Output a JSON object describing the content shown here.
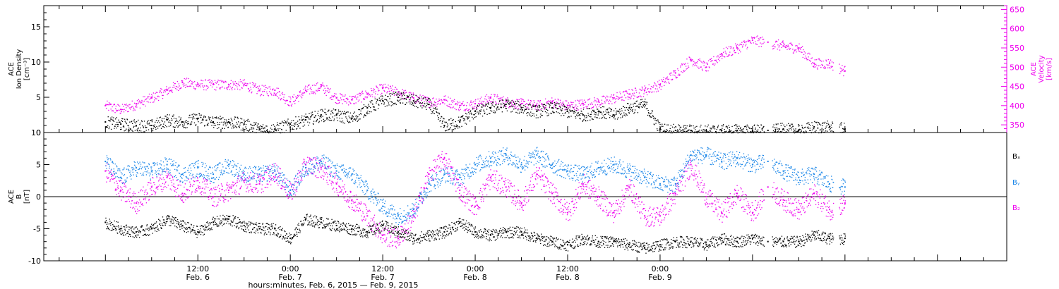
{
  "colors": {
    "black": "#000000",
    "magenta": "#ee00ee",
    "blue": "#1a86e8"
  },
  "chart_data": [
    {
      "type": "scatter",
      "panel": "top",
      "ylabel_left": [
        "ACE",
        "Ion Density",
        "[cm⁻³]"
      ],
      "ylabel_right": [
        "ACE",
        "Velocity",
        "[km/s]"
      ],
      "left_axis": {
        "ylim": [
          0,
          18
        ],
        "ticks": [
          0,
          5,
          10,
          15
        ]
      },
      "right_axis": {
        "ylim": [
          330,
          660
        ],
        "ticks": [
          350,
          400,
          450,
          500,
          550,
          600,
          650
        ]
      },
      "series": [
        {
          "axis": "left",
          "color": "black",
          "points": [
            [
              0,
              1.5
            ],
            [
              2,
              1.2
            ],
            [
              4,
              1.0
            ],
            [
              6,
              1.0
            ],
            [
              8,
              1.8
            ],
            [
              10,
              1.5
            ],
            [
              12,
              2.0
            ],
            [
              14,
              1.5
            ],
            [
              16,
              1.5
            ],
            [
              18,
              1.2
            ],
            [
              20,
              0.5
            ],
            [
              22,
              0.5
            ],
            [
              24,
              1.2
            ],
            [
              26,
              1.8
            ],
            [
              28,
              2.5
            ],
            [
              30,
              2.5
            ],
            [
              32,
              2.0
            ],
            [
              34,
              3.5
            ],
            [
              36,
              4.5
            ],
            [
              38,
              5.0
            ],
            [
              40,
              4.5
            ],
            [
              42,
              4.0
            ],
            [
              44,
              1.0
            ],
            [
              46,
              1.5
            ],
            [
              48,
              3.0
            ],
            [
              50,
              3.5
            ],
            [
              52,
              4.0
            ],
            [
              54,
              3.5
            ],
            [
              56,
              3.0
            ],
            [
              58,
              3.5
            ],
            [
              60,
              3.0
            ],
            [
              62,
              2.5
            ],
            [
              64,
              3.0
            ],
            [
              66,
              2.5
            ],
            [
              68,
              3.5
            ],
            [
              70,
              4.0
            ],
            [
              72,
              0.5
            ],
            [
              74,
              0.3
            ],
            [
              76,
              0.3
            ],
            [
              78,
              0.3
            ],
            [
              80,
              0.3
            ],
            [
              82,
              0.3
            ],
            [
              84,
              0.3
            ],
            [
              86,
              0.3
            ],
            [
              88,
              0.5
            ],
            [
              90,
              0.3
            ],
            [
              92,
              0.8
            ],
            [
              94,
              0.8
            ],
            [
              96,
              0.5
            ]
          ]
        },
        {
          "axis": "right",
          "color": "magenta",
          "points": [
            [
              0,
              400
            ],
            [
              2,
              390
            ],
            [
              4,
              405
            ],
            [
              6,
              420
            ],
            [
              8,
              440
            ],
            [
              10,
              460
            ],
            [
              12,
              455
            ],
            [
              14,
              455
            ],
            [
              16,
              455
            ],
            [
              18,
              455
            ],
            [
              20,
              440
            ],
            [
              22,
              440
            ],
            [
              24,
              410
            ],
            [
              26,
              440
            ],
            [
              28,
              450
            ],
            [
              30,
              420
            ],
            [
              32,
              415
            ],
            [
              34,
              430
            ],
            [
              36,
              445
            ],
            [
              38,
              435
            ],
            [
              40,
              420
            ],
            [
              42,
              410
            ],
            [
              44,
              415
            ],
            [
              46,
              400
            ],
            [
              48,
              405
            ],
            [
              50,
              420
            ],
            [
              52,
              410
            ],
            [
              54,
              405
            ],
            [
              56,
              400
            ],
            [
              58,
              410
            ],
            [
              60,
              400
            ],
            [
              62,
              405
            ],
            [
              64,
              410
            ],
            [
              66,
              420
            ],
            [
              68,
              430
            ],
            [
              70,
              440
            ],
            [
              72,
              455
            ],
            [
              74,
              485
            ],
            [
              76,
              520
            ],
            [
              78,
              500
            ],
            [
              80,
              535
            ],
            [
              82,
              550
            ],
            [
              84,
              570
            ],
            [
              86,
              565
            ],
            [
              88,
              555
            ],
            [
              90,
              550
            ],
            [
              92,
              510
            ],
            [
              94,
              510
            ],
            [
              96,
              490
            ]
          ]
        }
      ]
    },
    {
      "type": "scatter",
      "panel": "bottom",
      "ylabel_left": [
        "ACE",
        "B",
        "[nT]"
      ],
      "left_axis": {
        "ylim": [
          -10,
          10
        ],
        "ticks": [
          -10,
          -5,
          0,
          5,
          10
        ]
      },
      "legend": [
        "Bₓ",
        "Bᵧ",
        "B₂"
      ],
      "legend_placement": "right",
      "series": [
        {
          "name": "Bₓ",
          "color": "black",
          "points": [
            [
              0,
              -4.0
            ],
            [
              2,
              -5.0
            ],
            [
              4,
              -5.5
            ],
            [
              6,
              -5.0
            ],
            [
              8,
              -3.5
            ],
            [
              10,
              -4.5
            ],
            [
              12,
              -5.5
            ],
            [
              14,
              -4.0
            ],
            [
              16,
              -3.5
            ],
            [
              18,
              -4.5
            ],
            [
              20,
              -5.0
            ],
            [
              22,
              -5.0
            ],
            [
              24,
              -6.5
            ],
            [
              26,
              -3.5
            ],
            [
              28,
              -4.0
            ],
            [
              30,
              -4.5
            ],
            [
              32,
              -5.0
            ],
            [
              34,
              -5.5
            ],
            [
              36,
              -4.5
            ],
            [
              38,
              -5.5
            ],
            [
              40,
              -6.5
            ],
            [
              42,
              -6.0
            ],
            [
              44,
              -5.5
            ],
            [
              46,
              -4.0
            ],
            [
              48,
              -5.5
            ],
            [
              50,
              -6.0
            ],
            [
              52,
              -5.5
            ],
            [
              54,
              -5.5
            ],
            [
              56,
              -6.5
            ],
            [
              58,
              -7.0
            ],
            [
              60,
              -7.5
            ],
            [
              62,
              -6.5
            ],
            [
              64,
              -7.0
            ],
            [
              66,
              -7.0
            ],
            [
              68,
              -7.5
            ],
            [
              70,
              -8.0
            ],
            [
              72,
              -7.5
            ],
            [
              74,
              -7.0
            ],
            [
              76,
              -7.0
            ],
            [
              78,
              -7.5
            ],
            [
              80,
              -6.5
            ],
            [
              82,
              -7.0
            ],
            [
              84,
              -6.5
            ],
            [
              86,
              -7.0
            ],
            [
              88,
              -7.0
            ],
            [
              90,
              -7.0
            ],
            [
              92,
              -6.0
            ],
            [
              94,
              -6.5
            ],
            [
              96,
              -6.5
            ]
          ]
        },
        {
          "name": "Bᵧ",
          "color": "blue",
          "points": [
            [
              0,
              5.5
            ],
            [
              2,
              3.0
            ],
            [
              4,
              4.5
            ],
            [
              6,
              4.0
            ],
            [
              8,
              5.0
            ],
            [
              10,
              3.5
            ],
            [
              12,
              4.5
            ],
            [
              14,
              3.5
            ],
            [
              16,
              5.0
            ],
            [
              18,
              3.5
            ],
            [
              20,
              3.5
            ],
            [
              22,
              4.0
            ],
            [
              24,
              1.0
            ],
            [
              26,
              4.5
            ],
            [
              28,
              5.5
            ],
            [
              30,
              4.0
            ],
            [
              32,
              3.5
            ],
            [
              34,
              1.0
            ],
            [
              36,
              -1.5
            ],
            [
              38,
              -3.0
            ],
            [
              40,
              -2.0
            ],
            [
              42,
              2.0
            ],
            [
              44,
              3.5
            ],
            [
              46,
              3.0
            ],
            [
              48,
              5.0
            ],
            [
              50,
              6.0
            ],
            [
              52,
              6.5
            ],
            [
              54,
              5.0
            ],
            [
              56,
              6.5
            ],
            [
              58,
              5.0
            ],
            [
              60,
              4.0
            ],
            [
              62,
              3.5
            ],
            [
              64,
              4.5
            ],
            [
              66,
              5.0
            ],
            [
              68,
              4.0
            ],
            [
              70,
              3.0
            ],
            [
              72,
              2.0
            ],
            [
              74,
              2.0
            ],
            [
              76,
              6.5
            ],
            [
              78,
              6.5
            ],
            [
              80,
              5.5
            ],
            [
              82,
              6.0
            ],
            [
              84,
              5.0
            ],
            [
              86,
              5.5
            ],
            [
              88,
              4.0
            ],
            [
              90,
              3.0
            ],
            [
              92,
              3.5
            ],
            [
              94,
              2.0
            ],
            [
              96,
              1.5
            ]
          ]
        },
        {
          "name": "B₂",
          "color": "magenta",
          "points": [
            [
              0,
              4.0
            ],
            [
              2,
              1.0
            ],
            [
              4,
              -1.0
            ],
            [
              6,
              1.5
            ],
            [
              8,
              3.0
            ],
            [
              10,
              0.5
            ],
            [
              12,
              2.5
            ],
            [
              14,
              0.0
            ],
            [
              16,
              1.0
            ],
            [
              18,
              2.5
            ],
            [
              20,
              2.0
            ],
            [
              22,
              4.0
            ],
            [
              24,
              0.5
            ],
            [
              26,
              5.0
            ],
            [
              28,
              4.5
            ],
            [
              30,
              2.0
            ],
            [
              32,
              -0.5
            ],
            [
              34,
              -3.0
            ],
            [
              36,
              -6.0
            ],
            [
              38,
              -6.5
            ],
            [
              40,
              -3.0
            ],
            [
              42,
              3.5
            ],
            [
              44,
              6.0
            ],
            [
              46,
              1.0
            ],
            [
              48,
              -1.5
            ],
            [
              50,
              3.0
            ],
            [
              52,
              1.5
            ],
            [
              54,
              -1.0
            ],
            [
              56,
              3.5
            ],
            [
              58,
              0.5
            ],
            [
              60,
              -2.5
            ],
            [
              62,
              2.0
            ],
            [
              64,
              0.0
            ],
            [
              66,
              -2.5
            ],
            [
              68,
              1.5
            ],
            [
              70,
              -3.0
            ],
            [
              72,
              -3.0
            ],
            [
              74,
              0.5
            ],
            [
              76,
              5.0
            ],
            [
              78,
              0.0
            ],
            [
              80,
              -2.5
            ],
            [
              82,
              0.5
            ],
            [
              84,
              -2.5
            ],
            [
              86,
              1.5
            ],
            [
              88,
              -0.5
            ],
            [
              90,
              -2.0
            ],
            [
              92,
              0.5
            ],
            [
              94,
              -2.0
            ],
            [
              96,
              -1.0
            ]
          ]
        }
      ]
    }
  ],
  "x_axis": {
    "xlim_hours": [
      -8,
      117
    ],
    "tick_labels": [
      {
        "hour": 12,
        "time": "12:00",
        "date": "Feb. 6"
      },
      {
        "hour": 24,
        "time": "0:00",
        "date": "Feb. 7"
      },
      {
        "hour": 36,
        "time": "12:00",
        "date": "Feb. 7"
      },
      {
        "hour": 48,
        "time": "0:00",
        "date": "Feb. 8"
      },
      {
        "hour": 60,
        "time": "12:00",
        "date": "Feb. 8"
      },
      {
        "hour": 72,
        "time": "0:00",
        "date": "Feb. 9"
      }
    ],
    "title": "hours:minutes, Feb.  6, 2015 — Feb.  9, 2015"
  }
}
